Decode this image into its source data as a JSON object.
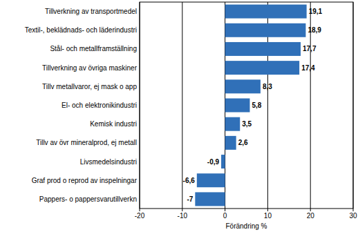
{
  "chart_data": {
    "type": "bar",
    "orientation": "horizontal",
    "categories": [
      "Tillverkning av transportmedel",
      "Textil-, beklädnads- och läderindustri",
      "Stål- och metallframställning",
      "Tillverkning av övriga maskiner",
      "Tillv metallvaror, ej mask o app",
      "El- och elektronikindustri",
      "Kemisk industri",
      "Tillv av övr mineralprod, ej metall",
      "Livsmedelsindustri",
      "Graf prod o reprod av inspelningar",
      "Pappers- o pappersvarutillverkn"
    ],
    "values": [
      19.1,
      18.9,
      17.7,
      17.4,
      8.3,
      5.8,
      3.5,
      2.6,
      -0.9,
      -6.6,
      -7
    ],
    "value_labels": [
      "19,1",
      "18,9",
      "17,7",
      "17,4",
      "8,3",
      "5,8",
      "3,5",
      "2,6",
      "-0,9",
      "-6,6",
      "-7"
    ],
    "color": "#3070b8",
    "x_label": "Förändring %",
    "xlim": [
      -20,
      30
    ],
    "xticks": [
      -20,
      -10,
      0,
      10,
      20,
      30
    ],
    "grid": true,
    "data_labels": true
  }
}
